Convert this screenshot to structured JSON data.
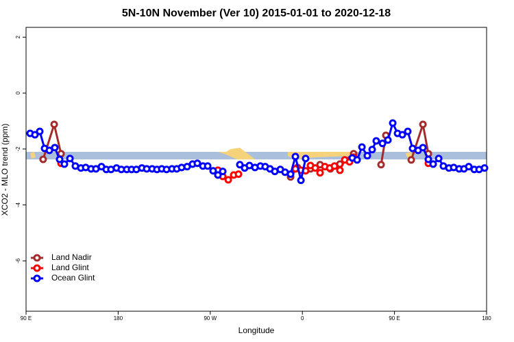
{
  "chart_data": {
    "type": "line",
    "title": "5N-10N November (Ver 10)   2015-01-01 to 2020-12-18",
    "x_label": "Longitude",
    "y_label": "XCO2 - MLO trend (ppm)",
    "xlim": [
      90,
      540
    ],
    "xticks": [
      {
        "value": 90,
        "label": "90 E"
      },
      180,
      {
        "value": 270,
        "label": "90 W"
      },
      {
        "value": 360,
        "label": "0"
      },
      {
        "value": 450,
        "label": "90 E"
      },
      {
        "value": 540,
        "label": "180"
      }
    ],
    "ylim": [
      -7.8,
      2.35
    ],
    "yticks": [
      2,
      0,
      -2,
      -4,
      -6
    ],
    "legend": "bottom-left",
    "series": [
      {
        "name": "Land Nadir",
        "color": "#a52a2a",
        "x": [
          106.7,
          117.5,
          124.2,
          null,
          348.5,
          355.2,
          367.9,
          377.3,
          387.4,
          396.7,
          410.1,
          null,
          436.9,
          441.6,
          null,
          466.4,
          477.8,
          483.1
        ],
        "values": [
          -2.37,
          -1.12,
          -2.17,
          null,
          -3.0,
          -2.66,
          -2.71,
          -2.56,
          -2.71,
          -2.54,
          -2.17,
          null,
          -2.56,
          -1.51,
          null,
          -2.39,
          -1.12,
          -2.17
        ]
      },
      {
        "name": "Land Glint",
        "color": "#ff0000",
        "x": [
          124.2,
          null,
          277.5,
          282.2,
          287.6,
          292.9,
          297.6,
          null,
          353.2,
          358.6,
          363.2,
          367.9,
          372.6,
          377.3,
          382,
          386.7,
          391.4,
          396.7,
          401.4,
          406.1,
          410.1,
          null,
          483.1
        ],
        "values": [
          -2.51,
          null,
          -2.76,
          -2.98,
          -3.1,
          -2.93,
          -2.9,
          null,
          -2.71,
          -2.76,
          -2.78,
          -2.59,
          -2.68,
          -2.85,
          -2.63,
          -2.68,
          -2.61,
          -2.76,
          -2.39,
          -2.46,
          -2.29,
          null,
          -2.51
        ]
      },
      {
        "name": "Ocean Glint",
        "color": "#0000ff",
        "x": [
          94,
          98.7,
          103.4,
          108.1,
          112.8,
          118.1,
          122.8,
          127.5,
          132.9,
          138.2,
          143.6,
          148.3,
          153.6,
          158.3,
          163.7,
          168.4,
          173,
          178.4,
          183.1,
          188.4,
          193.1,
          197.8,
          203.2,
          207.9,
          213.2,
          217.9,
          222.6,
          227.3,
          232.6,
          237.3,
          242,
          247.4,
          252.7,
          257.4,
          262.8,
          267.5,
          272.8,
          277.5,
          282.2,
          null,
          298.9,
          303.6,
          308.3,
          313.7,
          319,
          323.7,
          328.4,
          333.1,
          338.5,
          343.1,
          348.5,
          353.2,
          358.6,
          363.2,
          null,
          408.8,
          413.5,
          418.2,
          423.5,
          428.2,
          432.2,
          438.3,
          443.6,
          448.3,
          453,
          457.7,
          463,
          467.7,
          473.1,
          477.8,
          483.1,
          487.8,
          493.2,
          497.8,
          503.2,
          507.9,
          513.2,
          517.9,
          522.6,
          528,
          532.7,
          538
        ],
        "values": [
          -1.44,
          -1.49,
          -1.37,
          -1.98,
          -2.05,
          -1.95,
          -2.37,
          -2.54,
          -2.34,
          -2.61,
          -2.68,
          -2.66,
          -2.71,
          -2.71,
          -2.63,
          -2.73,
          -2.73,
          -2.68,
          -2.73,
          -2.73,
          -2.73,
          -2.73,
          -2.68,
          -2.71,
          -2.71,
          -2.73,
          -2.71,
          -2.73,
          -2.71,
          -2.71,
          -2.66,
          -2.63,
          -2.54,
          -2.51,
          -2.61,
          -2.61,
          -2.78,
          -2.93,
          -2.8,
          null,
          -2.56,
          -2.68,
          -2.59,
          -2.66,
          -2.61,
          -2.63,
          -2.71,
          -2.8,
          -2.73,
          -2.83,
          -2.9,
          -2.27,
          -3.12,
          -2.34,
          null,
          -2.32,
          -2.39,
          -1.93,
          -2.24,
          -2.02,
          -1.71,
          -1.8,
          -1.68,
          -1.07,
          -1.44,
          -1.49,
          -1.37,
          -1.98,
          -2.05,
          -1.95,
          -2.37,
          -2.54,
          -2.34,
          -2.61,
          -2.68,
          -2.66,
          -2.71,
          -2.71,
          -2.63,
          -2.73,
          -2.73,
          -2.68
        ]
      }
    ]
  }
}
